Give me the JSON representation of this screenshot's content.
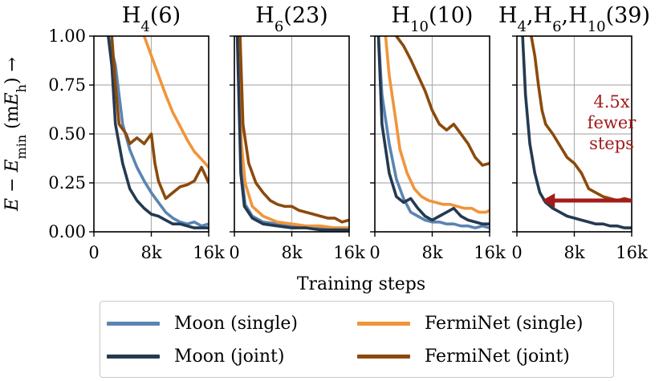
{
  "chart_data": {
    "type": "line",
    "ylabel_parts": [
      "E",
      " − ",
      "E",
      "min",
      " (m",
      "E",
      "h",
      ") →"
    ],
    "xlabel": "Training steps",
    "ylim": [
      0,
      1.0
    ],
    "xlim": [
      0,
      16000
    ],
    "yticks": [
      "0.00",
      "0.25",
      "0.50",
      "0.75",
      "1.00"
    ],
    "ytick_values": [
      0,
      0.25,
      0.5,
      0.75,
      1.0
    ],
    "xticks": [
      "0",
      "8k",
      "16k"
    ],
    "xtick_values": [
      0,
      8000,
      16000
    ],
    "colors": {
      "moon_single": "#5b84b1",
      "moon_joint": "#243a52",
      "ferminet_single": "#f0953a",
      "ferminet_joint": "#8b4a0c",
      "annotation": "#a31b1b"
    },
    "legend": {
      "position": "bottom",
      "entries": [
        {
          "key": "moon_single",
          "label": "Moon (single)"
        },
        {
          "key": "ferminet_single",
          "label": "FermiNet (single)"
        },
        {
          "key": "moon_joint",
          "label": "Moon (joint)"
        },
        {
          "key": "ferminet_joint",
          "label": "FermiNet (joint)"
        }
      ]
    },
    "panels": [
      {
        "title": "H4(6)",
        "title_parts": {
          "base": "H",
          "sub": "4",
          "rest": "(6)"
        },
        "series": {
          "moon_single": [
            [
              2000,
              1.0
            ],
            [
              3000,
              0.85
            ],
            [
              4000,
              0.55
            ],
            [
              5000,
              0.42
            ],
            [
              6000,
              0.33
            ],
            [
              7000,
              0.26
            ],
            [
              8000,
              0.2
            ],
            [
              9000,
              0.15
            ],
            [
              10000,
              0.1
            ],
            [
              11000,
              0.07
            ],
            [
              12000,
              0.05
            ],
            [
              13000,
              0.04
            ],
            [
              14000,
              0.05
            ],
            [
              15000,
              0.03
            ],
            [
              16000,
              0.04
            ]
          ],
          "moon_joint": [
            [
              2000,
              1.0
            ],
            [
              2500,
              0.85
            ],
            [
              3000,
              0.55
            ],
            [
              4000,
              0.35
            ],
            [
              5000,
              0.22
            ],
            [
              6000,
              0.16
            ],
            [
              7000,
              0.12
            ],
            [
              8000,
              0.09
            ],
            [
              9000,
              0.08
            ],
            [
              10000,
              0.06
            ],
            [
              11000,
              0.04
            ],
            [
              12000,
              0.04
            ],
            [
              13000,
              0.03
            ],
            [
              14000,
              0.02
            ],
            [
              15000,
              0.02
            ],
            [
              16000,
              0.02
            ]
          ],
          "ferminet_single": [
            [
              7000,
              1.0
            ],
            [
              8000,
              0.9
            ],
            [
              9000,
              0.8
            ],
            [
              10000,
              0.7
            ],
            [
              11000,
              0.61
            ],
            [
              12000,
              0.54
            ],
            [
              13000,
              0.47
            ],
            [
              14000,
              0.41
            ],
            [
              15000,
              0.37
            ],
            [
              16000,
              0.33
            ]
          ],
          "ferminet_joint": [
            [
              2500,
              1.0
            ],
            [
              3000,
              0.75
            ],
            [
              3500,
              0.55
            ],
            [
              4500,
              0.5
            ],
            [
              5000,
              0.45
            ],
            [
              6000,
              0.48
            ],
            [
              7000,
              0.45
            ],
            [
              8000,
              0.5
            ],
            [
              8500,
              0.35
            ],
            [
              9000,
              0.26
            ],
            [
              10000,
              0.17
            ],
            [
              11000,
              0.2
            ],
            [
              12000,
              0.23
            ],
            [
              13000,
              0.24
            ],
            [
              14000,
              0.26
            ],
            [
              15000,
              0.33
            ],
            [
              16000,
              0.25
            ]
          ]
        }
      },
      {
        "title": "H6(23)",
        "title_parts": {
          "base": "H",
          "sub": "6",
          "rest": "(23)"
        },
        "series": {
          "moon_single": [
            [
              500,
              1.0
            ],
            [
              1000,
              0.3
            ],
            [
              1500,
              0.14
            ],
            [
              2500,
              0.08
            ],
            [
              4000,
              0.05
            ],
            [
              6000,
              0.04
            ],
            [
              8000,
              0.03
            ],
            [
              10000,
              0.02
            ],
            [
              12000,
              0.02
            ],
            [
              14000,
              0.02
            ],
            [
              16000,
              0.02
            ]
          ],
          "moon_joint": [
            [
              400,
              1.0
            ],
            [
              900,
              0.3
            ],
            [
              1400,
              0.13
            ],
            [
              2500,
              0.07
            ],
            [
              4000,
              0.04
            ],
            [
              6000,
              0.03
            ],
            [
              8000,
              0.02
            ],
            [
              10000,
              0.02
            ],
            [
              12000,
              0.01
            ],
            [
              14000,
              0.01
            ],
            [
              16000,
              0.01
            ]
          ],
          "ferminet_single": [
            [
              600,
              1.0
            ],
            [
              1000,
              0.45
            ],
            [
              1500,
              0.25
            ],
            [
              2500,
              0.13
            ],
            [
              4000,
              0.08
            ],
            [
              6000,
              0.05
            ],
            [
              8000,
              0.04
            ],
            [
              10000,
              0.03
            ],
            [
              12000,
              0.03
            ],
            [
              14000,
              0.02
            ],
            [
              16000,
              0.02
            ]
          ],
          "ferminet_joint": [
            [
              800,
              1.0
            ],
            [
              1200,
              0.55
            ],
            [
              2000,
              0.35
            ],
            [
              3000,
              0.25
            ],
            [
              4000,
              0.2
            ],
            [
              5000,
              0.16
            ],
            [
              6000,
              0.14
            ],
            [
              7000,
              0.13
            ],
            [
              8000,
              0.13
            ],
            [
              9000,
              0.11
            ],
            [
              10000,
              0.1
            ],
            [
              11000,
              0.09
            ],
            [
              12000,
              0.08
            ],
            [
              13000,
              0.07
            ],
            [
              14000,
              0.07
            ],
            [
              15000,
              0.05
            ],
            [
              16000,
              0.06
            ]
          ]
        }
      },
      {
        "title": "H10(10)",
        "title_parts": {
          "base": "H",
          "sub": "10",
          "rest": "(10)"
        },
        "series": {
          "moon_single": [
            [
              500,
              1.0
            ],
            [
              1000,
              0.7
            ],
            [
              2000,
              0.45
            ],
            [
              3000,
              0.27
            ],
            [
              4000,
              0.17
            ],
            [
              5000,
              0.1
            ],
            [
              6000,
              0.08
            ],
            [
              7000,
              0.06
            ],
            [
              8000,
              0.05
            ],
            [
              9000,
              0.05
            ],
            [
              10000,
              0.04
            ],
            [
              11000,
              0.04
            ],
            [
              12000,
              0.03
            ],
            [
              13000,
              0.03
            ],
            [
              14000,
              0.02
            ],
            [
              15000,
              0.03
            ],
            [
              16000,
              0.02
            ]
          ],
          "moon_joint": [
            [
              500,
              1.0
            ],
            [
              1000,
              0.55
            ],
            [
              2000,
              0.3
            ],
            [
              3000,
              0.18
            ],
            [
              4000,
              0.15
            ],
            [
              5000,
              0.17
            ],
            [
              6000,
              0.12
            ],
            [
              7000,
              0.08
            ],
            [
              8000,
              0.06
            ],
            [
              9000,
              0.08
            ],
            [
              10000,
              0.1
            ],
            [
              11000,
              0.12
            ],
            [
              12000,
              0.08
            ],
            [
              13000,
              0.06
            ],
            [
              14000,
              0.05
            ],
            [
              15000,
              0.04
            ],
            [
              16000,
              0.04
            ]
          ],
          "ferminet_single": [
            [
              1500,
              1.0
            ],
            [
              2000,
              0.8
            ],
            [
              3000,
              0.55
            ],
            [
              3500,
              0.42
            ],
            [
              4500,
              0.3
            ],
            [
              5500,
              0.22
            ],
            [
              6500,
              0.18
            ],
            [
              7500,
              0.16
            ],
            [
              8500,
              0.15
            ],
            [
              9500,
              0.14
            ],
            [
              10500,
              0.14
            ],
            [
              11500,
              0.13
            ],
            [
              12500,
              0.12
            ],
            [
              13500,
              0.12
            ],
            [
              14500,
              0.1
            ],
            [
              15500,
              0.1
            ],
            [
              16000,
              0.11
            ]
          ],
          "ferminet_joint": [
            [
              3000,
              1.0
            ],
            [
              4000,
              0.95
            ],
            [
              5000,
              0.88
            ],
            [
              6000,
              0.8
            ],
            [
              7000,
              0.72
            ],
            [
              8000,
              0.62
            ],
            [
              9000,
              0.55
            ],
            [
              10000,
              0.52
            ],
            [
              11000,
              0.55
            ],
            [
              12000,
              0.5
            ],
            [
              13000,
              0.45
            ],
            [
              14000,
              0.38
            ],
            [
              15000,
              0.34
            ],
            [
              16000,
              0.35
            ]
          ]
        }
      },
      {
        "title": "H4,H6,H10(39)",
        "title_parts": {
          "base": "H",
          "sub": "4",
          "rest": ",",
          "base2": "H",
          "sub2": "6",
          "rest2": ",",
          "base3": "H",
          "sub3": "10",
          "rest3": "(39)"
        },
        "series": {
          "moon_joint": [
            [
              800,
              1.0
            ],
            [
              1200,
              0.7
            ],
            [
              1800,
              0.45
            ],
            [
              2500,
              0.3
            ],
            [
              3200,
              0.2
            ],
            [
              4000,
              0.15
            ],
            [
              5000,
              0.12
            ],
            [
              6000,
              0.1
            ],
            [
              7000,
              0.08
            ],
            [
              8000,
              0.07
            ],
            [
              9000,
              0.06
            ],
            [
              10000,
              0.05
            ],
            [
              11000,
              0.04
            ],
            [
              12000,
              0.04
            ],
            [
              13000,
              0.03
            ],
            [
              14000,
              0.03
            ],
            [
              15000,
              0.02
            ],
            [
              16000,
              0.02
            ]
          ],
          "ferminet_joint": [
            [
              2000,
              1.0
            ],
            [
              2500,
              0.9
            ],
            [
              3000,
              0.75
            ],
            [
              3500,
              0.62
            ],
            [
              4000,
              0.55
            ],
            [
              5000,
              0.5
            ],
            [
              6000,
              0.44
            ],
            [
              7000,
              0.38
            ],
            [
              8000,
              0.35
            ],
            [
              9000,
              0.3
            ],
            [
              10000,
              0.22
            ],
            [
              11000,
              0.2
            ],
            [
              12000,
              0.18
            ],
            [
              13000,
              0.17
            ],
            [
              14000,
              0.16
            ],
            [
              15000,
              0.17
            ],
            [
              16000,
              0.16
            ]
          ]
        },
        "annotation": {
          "lines": [
            "4.5x",
            "fewer",
            "steps"
          ],
          "arrow_from_x": 16000,
          "arrow_to_x": 3500,
          "arrow_y": 0.16
        }
      }
    ]
  }
}
